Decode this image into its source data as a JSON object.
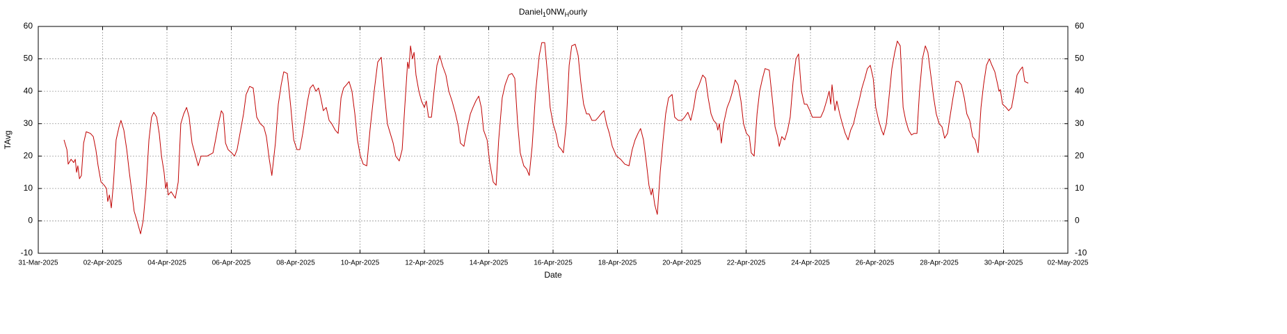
{
  "chart_data": {
    "type": "line",
    "title": [
      "Daniel",
      "1",
      "0NW",
      "H",
      "ourly"
    ],
    "x_label": "Date",
    "y_label": "TAvg",
    "color": "#c00000",
    "grid": true,
    "xlim": [
      0,
      32
    ],
    "xticks": [
      {
        "value": 0,
        "label": "31-Mar-2025"
      },
      {
        "value": 2,
        "label": "02-Apr-2025"
      },
      {
        "value": 4,
        "label": "04-Apr-2025"
      },
      {
        "value": 6,
        "label": "06-Apr-2025"
      },
      {
        "value": 8,
        "label": "08-Apr-2025"
      },
      {
        "value": 10,
        "label": "10-Apr-2025"
      },
      {
        "value": 12,
        "label": "12-Apr-2025"
      },
      {
        "value": 14,
        "label": "14-Apr-2025"
      },
      {
        "value": 16,
        "label": "16-Apr-2025"
      },
      {
        "value": 18,
        "label": "18-Apr-2025"
      },
      {
        "value": 20,
        "label": "20-Apr-2025"
      },
      {
        "value": 22,
        "label": "22-Apr-2025"
      },
      {
        "value": 24,
        "label": "24-Apr-2025"
      },
      {
        "value": 26,
        "label": "26-Apr-2025"
      },
      {
        "value": 28,
        "label": "28-Apr-2025"
      },
      {
        "value": 30,
        "label": "30-Apr-2025"
      },
      {
        "value": 32,
        "label": "02-May-2025"
      }
    ],
    "ylim": [
      -10,
      60
    ],
    "yticks": [
      -10,
      0,
      10,
      20,
      30,
      40,
      50,
      60
    ],
    "x": [
      0.8,
      0.89,
      0.93,
      1.02,
      1.1,
      1.15,
      1.19,
      1.23,
      1.28,
      1.34,
      1.41,
      1.49,
      1.62,
      1.71,
      1.79,
      1.86,
      1.95,
      2.05,
      2.12,
      2.16,
      2.21,
      2.27,
      2.34,
      2.42,
      2.51,
      2.57,
      2.66,
      2.75,
      2.83,
      2.92,
      2.98,
      3.07,
      3.18,
      3.26,
      3.35,
      3.44,
      3.52,
      3.59,
      3.68,
      3.76,
      3.83,
      3.91,
      3.96,
      4.0,
      4.04,
      4.13,
      4.26,
      4.35,
      4.43,
      4.52,
      4.61,
      4.69,
      4.78,
      4.89,
      4.97,
      5.06,
      5.25,
      5.43,
      5.51,
      5.6,
      5.69,
      5.75,
      5.82,
      5.9,
      6.01,
      6.1,
      6.18,
      6.27,
      6.38,
      6.46,
      6.57,
      6.68,
      6.79,
      6.9,
      7.01,
      7.09,
      7.18,
      7.26,
      7.37,
      7.46,
      7.55,
      7.63,
      7.74,
      7.85,
      7.94,
      8.04,
      8.13,
      8.22,
      8.28,
      8.37,
      8.45,
      8.54,
      8.63,
      8.71,
      8.78,
      8.86,
      8.95,
      9.04,
      9.12,
      9.23,
      9.32,
      9.41,
      9.49,
      9.58,
      9.66,
      9.75,
      9.84,
      9.92,
      10.01,
      10.1,
      10.21,
      10.31,
      10.44,
      10.55,
      10.66,
      10.77,
      10.85,
      10.94,
      11.03,
      11.11,
      11.22,
      11.31,
      11.39,
      11.48,
      11.52,
      11.57,
      11.63,
      11.68,
      11.74,
      11.83,
      11.91,
      12.0,
      12.06,
      12.13,
      12.22,
      12.3,
      12.39,
      12.48,
      12.56,
      12.67,
      12.76,
      12.86,
      12.97,
      13.06,
      13.12,
      13.23,
      13.32,
      13.43,
      13.51,
      13.6,
      13.69,
      13.77,
      13.84,
      13.95,
      14.03,
      14.14,
      14.23,
      14.31,
      14.42,
      14.51,
      14.62,
      14.72,
      14.81,
      14.9,
      14.98,
      15.09,
      15.18,
      15.26,
      15.35,
      15.46,
      15.57,
      15.65,
      15.74,
      15.83,
      15.91,
      16.0,
      16.09,
      16.17,
      16.26,
      16.32,
      16.41,
      16.5,
      16.58,
      16.69,
      16.78,
      16.86,
      16.95,
      17.04,
      17.12,
      17.21,
      17.32,
      17.41,
      17.49,
      17.58,
      17.66,
      17.75,
      17.84,
      17.97,
      18.1,
      18.23,
      18.36,
      18.46,
      18.55,
      18.64,
      18.72,
      18.81,
      18.9,
      18.98,
      19.05,
      19.09,
      19.16,
      19.24,
      19.33,
      19.42,
      19.5,
      19.59,
      19.7,
      19.78,
      19.89,
      20.0,
      20.09,
      20.19,
      20.28,
      20.37,
      20.45,
      20.54,
      20.65,
      20.74,
      20.82,
      20.91,
      20.99,
      21.08,
      21.12,
      21.17,
      21.23,
      21.3,
      21.41,
      21.49,
      21.58,
      21.66,
      21.75,
      21.84,
      21.92,
      22.01,
      22.1,
      22.16,
      22.25,
      22.34,
      22.42,
      22.51,
      22.59,
      22.72,
      22.81,
      22.9,
      22.98,
      23.03,
      23.11,
      23.2,
      23.29,
      23.37,
      23.46,
      23.55,
      23.63,
      23.72,
      23.81,
      23.89,
      23.98,
      24.06,
      24.15,
      24.24,
      24.32,
      24.41,
      24.5,
      24.58,
      24.63,
      24.67,
      24.76,
      24.82,
      24.91,
      24.99,
      25.08,
      25.17,
      25.25,
      25.34,
      25.43,
      25.51,
      25.6,
      25.69,
      25.77,
      25.86,
      25.95,
      26.03,
      26.12,
      26.21,
      26.27,
      26.36,
      26.44,
      26.53,
      26.62,
      26.7,
      26.79,
      26.88,
      26.96,
      27.05,
      27.14,
      27.22,
      27.31,
      27.39,
      27.48,
      27.57,
      27.65,
      27.74,
      27.83,
      27.91,
      28.0,
      28.09,
      28.17,
      28.26,
      28.35,
      28.43,
      28.52,
      28.61,
      28.69,
      28.78,
      28.86,
      28.95,
      29.04,
      29.12,
      29.21,
      29.3,
      29.38,
      29.47,
      29.56,
      29.64,
      29.73,
      29.82,
      29.86,
      29.9,
      29.97,
      30.08,
      30.16,
      30.25,
      30.34,
      30.42,
      30.51,
      30.59,
      30.66,
      30.77
    ],
    "values": [
      25,
      22,
      17.5,
      19,
      18,
      19,
      15,
      17,
      13,
      14,
      24,
      27.5,
      27,
      26,
      22,
      17,
      12,
      11,
      10,
      6,
      8,
      4,
      12,
      25,
      29,
      31,
      28,
      22,
      15,
      8,
      3,
      0,
      -4,
      0,
      10,
      25,
      32,
      33.5,
      32,
      27,
      20,
      15,
      10,
      12,
      8,
      9,
      7,
      12,
      30,
      33,
      35,
      32,
      24,
      20,
      17,
      20,
      20,
      21,
      25,
      30,
      34,
      33,
      24,
      22,
      21,
      20,
      22,
      27,
      33,
      39,
      41.5,
      41,
      32,
      30,
      29,
      26,
      19,
      14,
      24,
      36,
      42,
      46,
      45.5,
      35,
      25,
      22,
      22,
      27,
      31,
      37,
      41,
      42,
      40,
      41,
      38,
      34,
      35,
      31,
      30,
      28,
      27,
      38,
      41,
      42,
      43,
      40,
      33,
      25,
      20,
      17.5,
      17,
      28,
      40,
      49,
      50.5,
      38,
      30,
      27,
      24,
      20,
      18.5,
      22,
      35,
      49,
      47,
      54,
      50,
      52,
      45,
      40,
      37,
      35,
      37,
      32,
      32,
      40,
      48,
      51,
      48,
      45,
      40,
      37,
      33,
      29,
      24,
      23,
      28,
      33,
      35,
      37,
      38.5,
      35,
      28,
      25,
      18,
      12,
      11,
      25,
      38,
      42,
      45,
      45.5,
      44,
      30,
      21,
      17,
      16,
      14,
      23,
      40,
      51,
      55,
      55,
      45,
      35,
      30,
      27,
      23,
      22,
      21,
      30,
      48,
      54,
      54.5,
      51,
      43,
      36,
      33,
      33,
      31,
      31,
      32,
      33,
      34,
      30,
      27,
      23,
      20,
      19,
      17.5,
      17,
      22,
      25,
      27,
      28.5,
      25,
      18,
      11,
      8,
      10,
      5,
      2,
      15,
      25,
      33,
      38,
      39,
      32,
      31,
      31,
      32,
      33.5,
      31,
      35,
      40,
      42,
      45,
      44,
      38,
      33,
      31,
      30,
      28,
      30,
      24,
      30,
      35,
      37,
      40,
      43.5,
      42,
      37,
      30,
      27,
      26,
      21,
      20,
      33,
      40,
      44,
      47,
      46.5,
      38,
      29,
      26,
      23,
      26,
      25,
      28,
      32,
      43,
      50,
      51.5,
      40,
      36,
      36,
      34,
      32,
      32,
      32,
      32,
      34,
      37,
      40,
      36,
      42,
      34,
      37,
      33,
      30,
      27,
      25,
      28,
      30,
      34,
      37,
      41,
      44,
      47,
      48,
      44,
      35,
      31,
      28,
      26.5,
      30,
      38,
      47,
      52,
      55.5,
      54,
      35,
      31,
      28,
      26.5,
      27,
      27,
      40,
      50,
      54,
      52,
      45,
      38,
      33,
      30,
      29,
      25.5,
      27,
      33,
      38,
      43,
      43,
      42,
      38,
      33,
      31,
      26,
      25,
      21,
      35,
      42,
      48,
      50,
      48,
      46,
      42,
      40,
      40.5,
      36,
      35,
      34,
      35,
      40,
      45,
      46.5,
      47.5,
      43,
      42.5
    ]
  }
}
